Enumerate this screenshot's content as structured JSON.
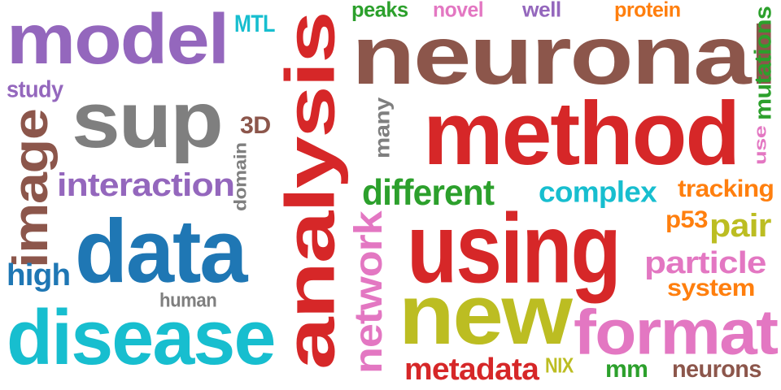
{
  "words": [
    {
      "text": "neuronal",
      "color": "#8c564b"
    },
    {
      "text": "analysis",
      "color": "#d62728"
    },
    {
      "text": "method",
      "color": "#d62728"
    },
    {
      "text": "using",
      "color": "#d62728"
    },
    {
      "text": "new",
      "color": "#bcbd22"
    },
    {
      "text": "data",
      "color": "#1f77b4"
    },
    {
      "text": "disease",
      "color": "#17becf"
    },
    {
      "text": "format",
      "color": "#e377c2"
    },
    {
      "text": "model",
      "color": "#9467bd"
    },
    {
      "text": "sup",
      "color": "#7f7f7f"
    },
    {
      "text": "image",
      "color": "#8c564b"
    },
    {
      "text": "interaction",
      "color": "#9467bd"
    },
    {
      "text": "different",
      "color": "#2ca02c"
    },
    {
      "text": "complex",
      "color": "#17becf"
    },
    {
      "text": "network",
      "color": "#e377c2"
    },
    {
      "text": "metadata",
      "color": "#d62728"
    },
    {
      "text": "particle",
      "color": "#e377c2"
    },
    {
      "text": "pair",
      "color": "#bcbd22"
    },
    {
      "text": "tracking",
      "color": "#ff7f0e"
    },
    {
      "text": "system",
      "color": "#ff7f0e"
    },
    {
      "text": "p53",
      "color": "#ff7f0e"
    },
    {
      "text": "high",
      "color": "#1f77b4"
    },
    {
      "text": "study",
      "color": "#9467bd"
    },
    {
      "text": "MTL",
      "color": "#17becf"
    },
    {
      "text": "peaks",
      "color": "#2ca02c"
    },
    {
      "text": "novel",
      "color": "#e377c2"
    },
    {
      "text": "well",
      "color": "#9467bd"
    },
    {
      "text": "protein",
      "color": "#ff7f0e"
    },
    {
      "text": "mutations",
      "color": "#2ca02c"
    },
    {
      "text": "use",
      "color": "#e377c2"
    },
    {
      "text": "3D",
      "color": "#8c564b"
    },
    {
      "text": "many",
      "color": "#7f7f7f"
    },
    {
      "text": "domain",
      "color": "#7f7f7f"
    },
    {
      "text": "human",
      "color": "#7f7f7f"
    },
    {
      "text": "NIX",
      "color": "#bcbd22"
    },
    {
      "text": "mm",
      "color": "#2ca02c"
    },
    {
      "text": "neurons",
      "color": "#8c564b"
    }
  ]
}
